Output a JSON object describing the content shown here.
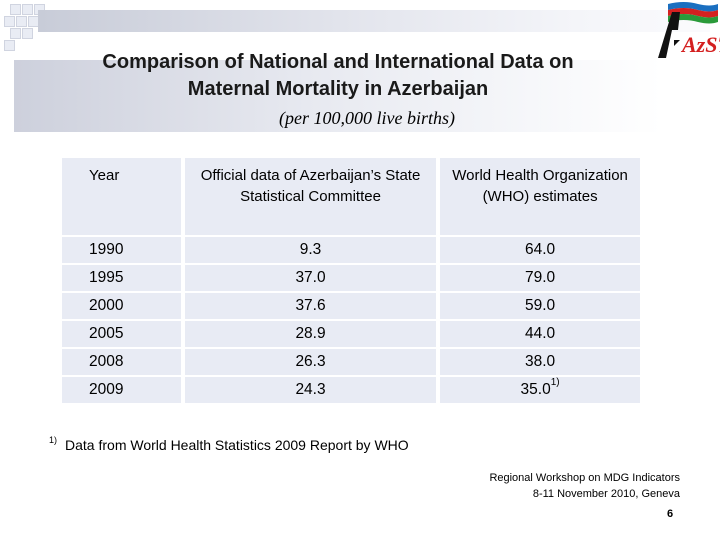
{
  "slide": {
    "title_line1": "Comparison of National and International Data on",
    "title_line2": "Maternal Mortality in Azerbaijan",
    "subtitle": "(per 100,000 live births)"
  },
  "logo": {
    "text": "AzSTAT",
    "colors": [
      "#1a6fc0",
      "#d42020",
      "#2a9a3a"
    ]
  },
  "table": {
    "headers": [
      "Year",
      "Official data of Azerbaijan’s State Statistical Committee",
      "World Health Organization (WHO) estimates"
    ],
    "rows": [
      {
        "year": "1990",
        "official": "9.3",
        "who": "64.0",
        "who_note": ""
      },
      {
        "year": "1995",
        "official": "37.0",
        "who": "79.0",
        "who_note": ""
      },
      {
        "year": "2000",
        "official": "37.6",
        "who": "59.0",
        "who_note": ""
      },
      {
        "year": "2005",
        "official": "28.9",
        "who": "44.0",
        "who_note": ""
      },
      {
        "year": "2008",
        "official": "26.3",
        "who": "38.0",
        "who_note": ""
      },
      {
        "year": "2009",
        "official": "24.3",
        "who": "35.0",
        "who_note": "1)"
      }
    ]
  },
  "footnote": {
    "marker": "1)",
    "text": "Data from World Health Statistics 2009 Report by WHO"
  },
  "workshop": {
    "line1": "Regional Workshop on MDG Indicators",
    "line2": "8-11 November 2010, Geneva"
  },
  "page_number": "6"
}
